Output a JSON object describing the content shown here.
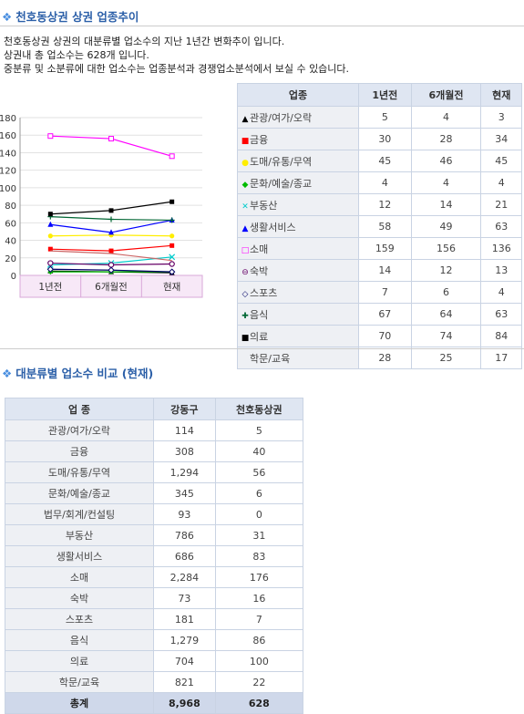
{
  "section1": {
    "title": "천호동상권 상권 업종추이"
  },
  "intro": {
    "line1": "천호동상권 상권의 대분류별 업소수의 지난 1년간 변화추이 입니다.",
    "line2": "상권내 총 업소수는 628개 입니다.",
    "line3": "중분류 및 소분류에 대한 업소수는 업종분석과 경쟁업소분석에서 보실 수 있습니다."
  },
  "trend_table": {
    "headers": [
      "업종",
      "1년전",
      "6개월전",
      "현재"
    ],
    "rows": [
      {
        "name": "관광/여가/오락",
        "marker": "▲",
        "color": "#000000",
        "v": [
          "5",
          "4",
          "3"
        ]
      },
      {
        "name": "금융",
        "marker": "■",
        "color": "#ff0000",
        "v": [
          "30",
          "28",
          "34"
        ]
      },
      {
        "name": "도매/유통/무역",
        "marker": "●",
        "color": "#ffee00",
        "v": [
          "45",
          "46",
          "45"
        ]
      },
      {
        "name": "문화/예술/종교",
        "marker": "◆",
        "color": "#00bb00",
        "v": [
          "4",
          "4",
          "4"
        ]
      },
      {
        "name": "부동산",
        "marker": "✕",
        "color": "#00cccc",
        "v": [
          "12",
          "14",
          "21"
        ]
      },
      {
        "name": "생활서비스",
        "marker": "▲",
        "color": "#0000ff",
        "v": [
          "58",
          "49",
          "63"
        ]
      },
      {
        "name": "소매",
        "marker": "□",
        "color": "#ff00ff",
        "v": [
          "159",
          "156",
          "136"
        ]
      },
      {
        "name": "숙박",
        "marker": "⊖",
        "color": "#660066",
        "v": [
          "14",
          "12",
          "13"
        ]
      },
      {
        "name": "스포츠",
        "marker": "◇",
        "color": "#000066",
        "v": [
          "7",
          "6",
          "4"
        ]
      },
      {
        "name": "음식",
        "marker": "✚",
        "color": "#006633",
        "v": [
          "67",
          "64",
          "63"
        ]
      },
      {
        "name": "의료",
        "marker": "■",
        "color": "#000000",
        "v": [
          "70",
          "74",
          "84"
        ]
      },
      {
        "name": "학문/교육",
        "marker": "",
        "color": "#999999",
        "v": [
          "28",
          "25",
          "17"
        ]
      }
    ]
  },
  "chart_data": {
    "type": "line",
    "x": [
      "1년전",
      "6개월전",
      "현재"
    ],
    "ylim": [
      0,
      180
    ],
    "yticks": [
      "0",
      "20",
      "40",
      "60",
      "80",
      "100",
      "120",
      "140",
      "160",
      "180"
    ],
    "series": [
      {
        "name": "관광/여가/오락",
        "color": "#000000",
        "marker": "triangle",
        "values": [
          5,
          4,
          3
        ]
      },
      {
        "name": "금융",
        "color": "#ff0000",
        "marker": "square",
        "values": [
          30,
          28,
          34
        ]
      },
      {
        "name": "도매/유통/무역",
        "color": "#ffee00",
        "marker": "circle",
        "values": [
          45,
          46,
          45
        ]
      },
      {
        "name": "문화/예술/종교",
        "color": "#00bb00",
        "marker": "diamond",
        "values": [
          4,
          4,
          4
        ]
      },
      {
        "name": "부동산",
        "color": "#00cccc",
        "marker": "x",
        "values": [
          12,
          14,
          21
        ]
      },
      {
        "name": "생활서비스",
        "color": "#0000ff",
        "marker": "triangle",
        "values": [
          58,
          49,
          63
        ]
      },
      {
        "name": "소매",
        "color": "#ff00ff",
        "marker": "opensquare",
        "values": [
          159,
          156,
          136
        ]
      },
      {
        "name": "숙박",
        "color": "#660066",
        "marker": "opencircle",
        "values": [
          14,
          12,
          13
        ]
      },
      {
        "name": "스포츠",
        "color": "#000066",
        "marker": "opendiamond",
        "values": [
          7,
          6,
          4
        ]
      },
      {
        "name": "음식",
        "color": "#006633",
        "marker": "plus",
        "values": [
          67,
          64,
          63
        ]
      },
      {
        "name": "의료",
        "color": "#000000",
        "marker": "square",
        "values": [
          70,
          74,
          84
        ]
      },
      {
        "name": "학문/교육",
        "color": "#cc6666",
        "marker": "none",
        "values": [
          28,
          25,
          17
        ]
      }
    ]
  },
  "section2": {
    "title": "대분류별 업소수 비교 (현재)"
  },
  "compare_table": {
    "headers": [
      "업 종",
      "강동구",
      "천호동상권"
    ],
    "rows": [
      [
        "관광/여가/오락",
        "114",
        "5"
      ],
      [
        "금융",
        "308",
        "40"
      ],
      [
        "도매/유통/무역",
        "1,294",
        "56"
      ],
      [
        "문화/예술/종교",
        "345",
        "6"
      ],
      [
        "법무/회계/컨설팅",
        "93",
        "0"
      ],
      [
        "부동산",
        "786",
        "31"
      ],
      [
        "생활서비스",
        "686",
        "83"
      ],
      [
        "소매",
        "2,284",
        "176"
      ],
      [
        "숙박",
        "73",
        "16"
      ],
      [
        "스포츠",
        "181",
        "7"
      ],
      [
        "음식",
        "1,279",
        "86"
      ],
      [
        "의료",
        "704",
        "100"
      ],
      [
        "학문/교육",
        "821",
        "22"
      ]
    ],
    "total": [
      "총계",
      "8,968",
      "628"
    ]
  }
}
